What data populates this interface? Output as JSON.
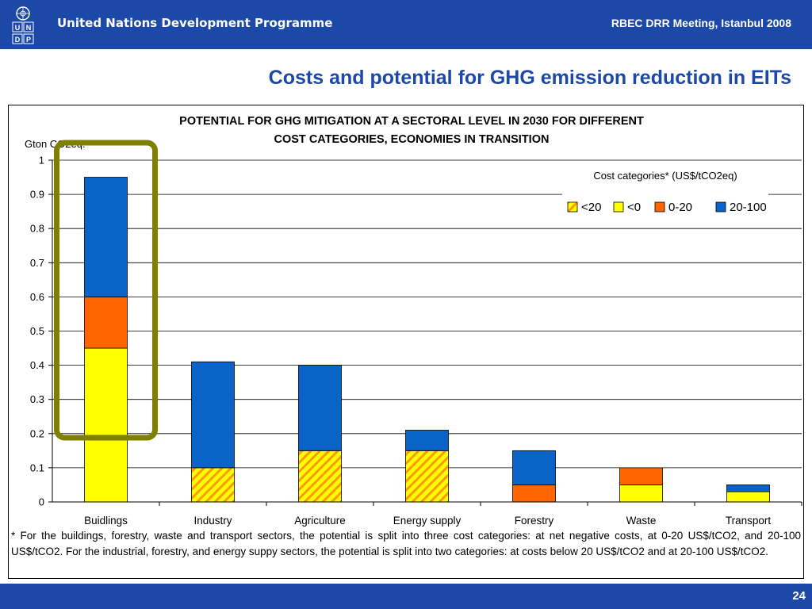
{
  "header": {
    "org_name": "United Nations Development Programme",
    "meeting": "RBEC DRR Meeting, Istanbul 2008",
    "logo_letters": [
      "U",
      "N",
      "D",
      "P"
    ]
  },
  "slide_title": "Costs and potential for GHG emission reduction in EITs",
  "chart_data": {
    "type": "bar",
    "stacked": true,
    "title_line1": "POTENTIAL FOR GHG MITIGATION AT A SECTORAL LEVEL IN 2030 FOR DIFFERENT",
    "title_line2": "COST CATEGORIES, ECONOMIES IN TRANSITION",
    "ylabel": "Gton CO2eq.",
    "ylim": [
      0,
      1
    ],
    "yticks": [
      "0",
      "0.1",
      "0.2",
      "0.3",
      "0.4",
      "0.5",
      "0.6",
      "0.7",
      "0.8",
      "0.9",
      "1"
    ],
    "grid": true,
    "categories": [
      "Buidlings",
      "Industry",
      "Agriculture",
      "Energy supply",
      "Forestry",
      "Waste",
      "Transport"
    ],
    "legend_title": "Cost categories* (US$/tCO2eq)",
    "legend_position": "top-right",
    "series": [
      {
        "name": "<20",
        "color": "#ffff00",
        "pattern": "hatch-orange",
        "values": [
          0,
          0.1,
          0.15,
          0.15,
          0,
          0,
          0
        ]
      },
      {
        "name": "<0",
        "color": "#ffff00",
        "values": [
          0.45,
          0,
          0,
          0,
          0,
          0.05,
          0.03
        ]
      },
      {
        "name": "0-20",
        "color": "#ff6600",
        "values": [
          0.15,
          0,
          0,
          0,
          0.05,
          0.05,
          0
        ]
      },
      {
        "name": "20-100",
        "color": "#0a64c8",
        "values": [
          0.35,
          0.31,
          0.25,
          0.06,
          0.1,
          0,
          0.02
        ]
      }
    ],
    "highlight_category": "Buidlings",
    "highlight_color": "#808000"
  },
  "footnote": "* For the buildings, forestry, waste and transport sectors, the potential is split into three cost categories: at net negative costs, at 0-20 US$/tCO2, and 20-100 US$/tCO2. For the industrial, forestry, and energy suppy sectors, the potential is split into two categories: at costs below 20 US$/tCO2 and at 20-100 US$/tCO2.",
  "footer": {
    "page_small": "24",
    "page_big": "24"
  }
}
